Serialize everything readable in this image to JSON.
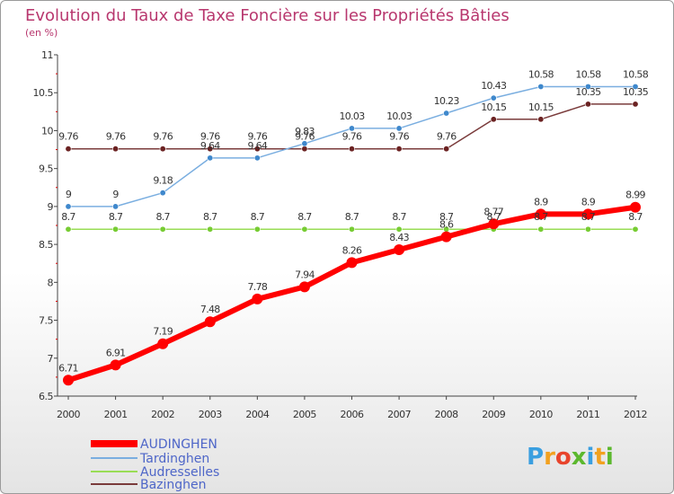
{
  "chart_data": {
    "type": "line",
    "title": "Evolution du Taux de Taxe Foncière sur les Propriétés Bâties",
    "subtitle": "(en %)",
    "x": [
      "2000",
      "2001",
      "2002",
      "2003",
      "2004",
      "2005",
      "2006",
      "2007",
      "2008",
      "2009",
      "2010",
      "2011",
      "2012"
    ],
    "y_ticks": [
      "6.5",
      "7",
      "7.5",
      "8",
      "8.5",
      "9",
      "9.5",
      "10",
      "10.5",
      "11"
    ],
    "ylim": [
      6.5,
      11
    ],
    "grid": false,
    "legend_position": "bottom-left",
    "series": [
      {
        "name": "AUDINGHEN",
        "color": "#ff0000",
        "marker_color": "#ff0000",
        "values": [
          6.71,
          6.91,
          7.19,
          7.48,
          7.78,
          7.94,
          8.26,
          8.43,
          8.6,
          8.77,
          8.9,
          8.9,
          8.99
        ],
        "labels": [
          "6.71",
          "6.91",
          "7.19",
          "7.48",
          "7.78",
          "7.94",
          "8.26",
          "8.43",
          "8.6",
          "8.77",
          "8.9",
          "8.9",
          "8.99"
        ]
      },
      {
        "name": "Tardinghen",
        "color": "#7aaee0",
        "marker_color": "#3f88cc",
        "values": [
          9,
          9,
          9.18,
          9.64,
          9.64,
          9.83,
          10.03,
          10.03,
          10.23,
          10.43,
          10.58,
          10.58,
          10.58
        ],
        "labels": [
          "9",
          "9",
          "9.18",
          "9.64",
          "9.64",
          "9.83",
          "10.03",
          "10.03",
          "10.23",
          "10.43",
          "10.58",
          "10.58",
          "10.58"
        ]
      },
      {
        "name": "Audresselles",
        "color": "#99dd55",
        "marker_color": "#77cc33",
        "values": [
          8.7,
          8.7,
          8.7,
          8.7,
          8.7,
          8.7,
          8.7,
          8.7,
          8.7,
          8.7,
          8.7,
          8.7,
          8.7
        ],
        "labels": [
          "8.7",
          "8.7",
          "8.7",
          "8.7",
          "8.7",
          "8.7",
          "8.7",
          "8.7",
          "8.7",
          "8.7",
          "8.7",
          "8.7",
          "8.7"
        ]
      },
      {
        "name": "Bazinghen",
        "color": "#7a3b3b",
        "marker_color": "#6b2222",
        "values": [
          9.76,
          9.76,
          9.76,
          9.76,
          9.76,
          9.76,
          9.76,
          9.76,
          9.76,
          10.15,
          10.15,
          10.35,
          10.35
        ],
        "labels": [
          "9.76",
          "9.76",
          "9.76",
          "9.76",
          "9.76",
          "9.76",
          "9.76",
          "9.76",
          "9.76",
          "10.15",
          "10.15",
          "10.35",
          "10.35"
        ]
      }
    ]
  },
  "logo": {
    "letters": [
      {
        "ch": "P",
        "color": "#3a9fe0"
      },
      {
        "ch": "r",
        "color": "#f2a11f"
      },
      {
        "ch": "o",
        "color": "#e8442c"
      },
      {
        "ch": "x",
        "color": "#5cb82e"
      },
      {
        "ch": "i",
        "color": "#3a9fe0"
      },
      {
        "ch": "t",
        "color": "#f2a11f"
      },
      {
        "ch": "i",
        "color": "#5cb82e"
      }
    ]
  }
}
